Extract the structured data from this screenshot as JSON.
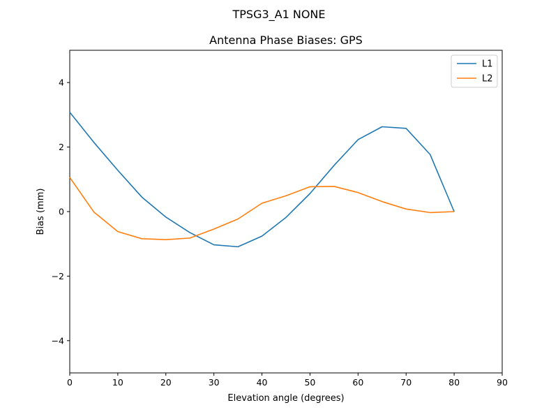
{
  "chart_data": {
    "type": "line",
    "suptitle": "TPSG3_A1         NONE",
    "title": "Antenna Phase Biases: GPS",
    "xlabel": "Elevation angle (degrees)",
    "ylabel": "Bias (mm)",
    "xlim": [
      0,
      90
    ],
    "ylim": [
      -5,
      5
    ],
    "xticks": [
      0,
      10,
      20,
      30,
      40,
      50,
      60,
      70,
      80,
      90
    ],
    "xtick_labels": [
      "0",
      "10",
      "20",
      "30",
      "40",
      "50",
      "60",
      "70",
      "80",
      "90"
    ],
    "yticks": [
      -4,
      -2,
      0,
      2,
      4
    ],
    "ytick_labels": [
      "−4",
      "−2",
      "0",
      "2",
      "4"
    ],
    "grid": false,
    "legend_position": "upper right",
    "x": [
      0,
      5,
      10,
      15,
      20,
      25,
      30,
      35,
      40,
      45,
      50,
      55,
      60,
      65,
      70,
      75,
      80
    ],
    "series": [
      {
        "name": "L1",
        "color": "#1f77b4",
        "values": [
          3.08,
          2.15,
          1.28,
          0.45,
          -0.17,
          -0.65,
          -1.03,
          -1.09,
          -0.76,
          -0.18,
          0.56,
          1.43,
          2.23,
          2.63,
          2.58,
          1.77,
          0.0
        ]
      },
      {
        "name": "L2",
        "color": "#ff7f0e",
        "values": [
          1.06,
          -0.01,
          -0.62,
          -0.84,
          -0.87,
          -0.82,
          -0.54,
          -0.23,
          0.26,
          0.49,
          0.77,
          0.78,
          0.59,
          0.31,
          0.08,
          -0.03,
          0.0
        ]
      }
    ]
  }
}
